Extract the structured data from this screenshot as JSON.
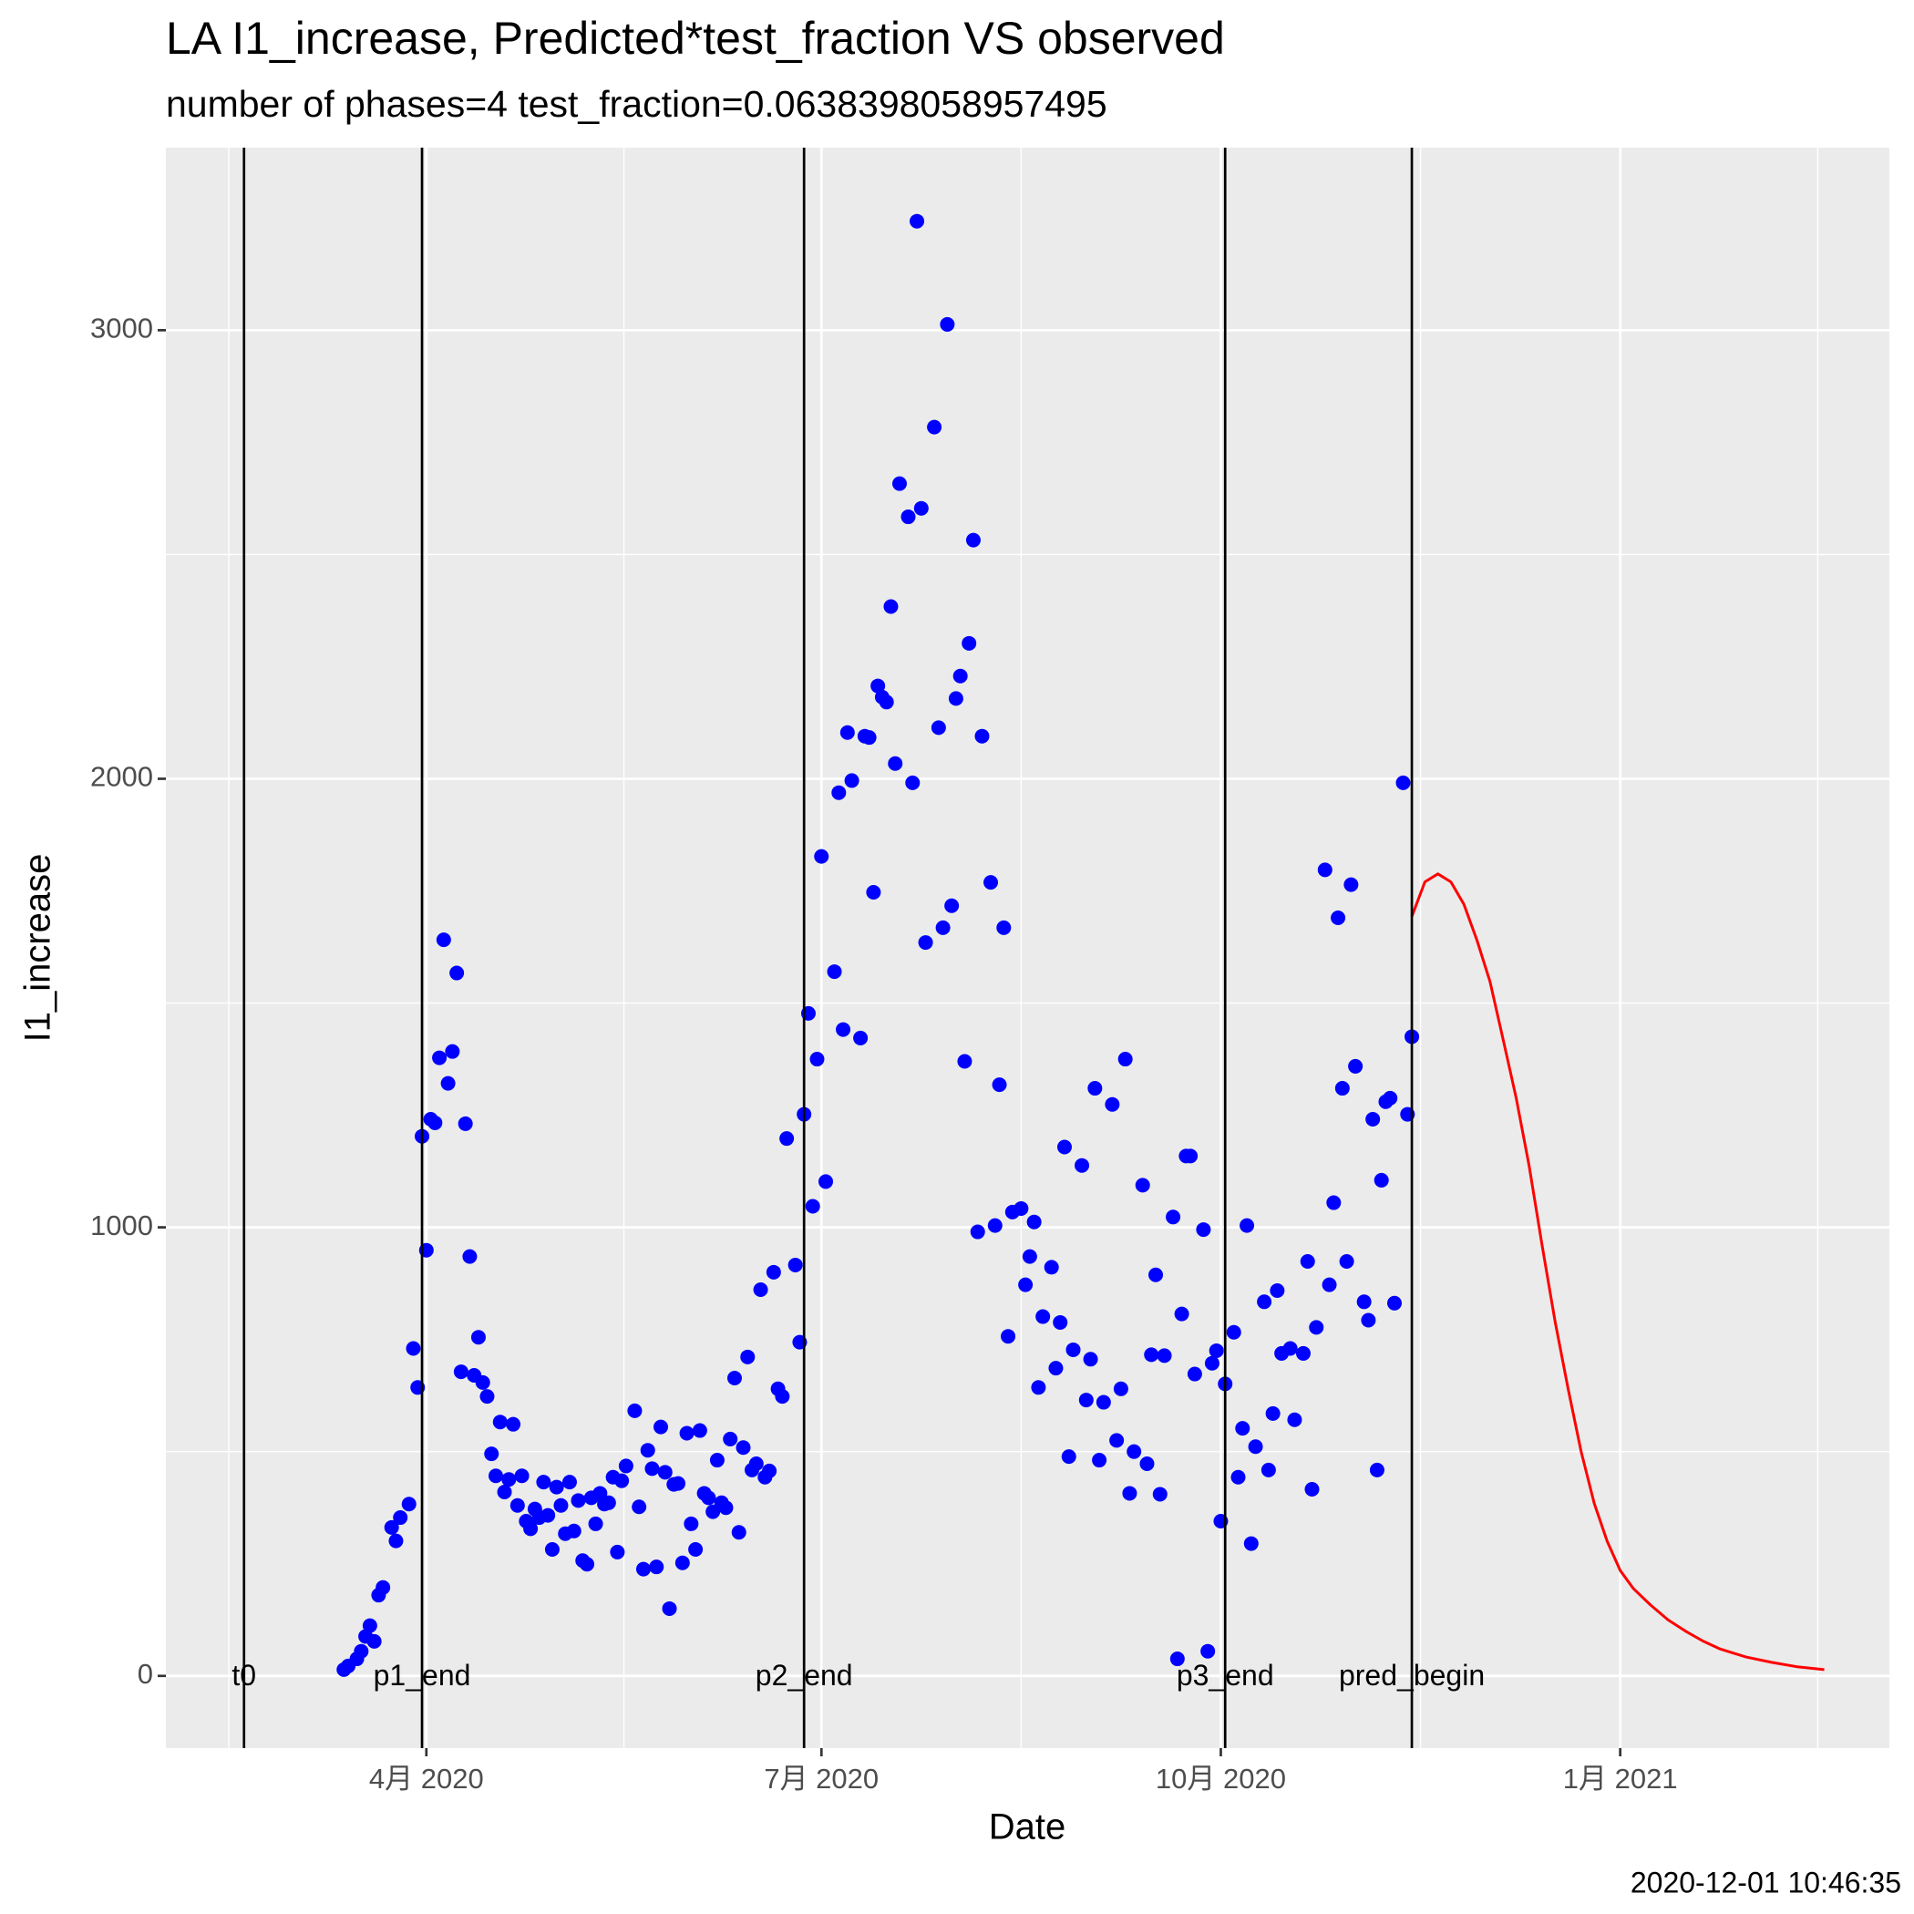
{
  "chart_data": {
    "type": "scatter",
    "title": "LA I1_increase, Predicted*test_fraction VS observed",
    "subtitle": "number of phases=4   test_fraction=0.0638398058957495",
    "x_label": "Date",
    "y_label": "I1_increase",
    "caption": "2020-12-01 10:46:35",
    "xlim": [
      "2020-02-01",
      "2021-03-04"
    ],
    "xticks": [
      {
        "value": "2020-04-01",
        "label": "4月 2020"
      },
      {
        "value": "2020-07-01",
        "label": "7月 2020"
      },
      {
        "value": "2020-10-01",
        "label": "10月 2020"
      },
      {
        "value": "2021-01-01",
        "label": "1月 2021"
      }
    ],
    "ylim": [
      -161,
      3407
    ],
    "yticks": [
      0,
      1000,
      2000,
      3000
    ],
    "grid": true,
    "annotations": [
      {
        "x": "2020-02-19",
        "text": "t0"
      },
      {
        "x": "2020-03-31",
        "text": "p1_end"
      },
      {
        "x": "2020-06-27",
        "text": "p2_end"
      },
      {
        "x": "2020-10-02",
        "text": "p3_end"
      },
      {
        "x": "2020-11-14",
        "text": "pred_begin"
      }
    ],
    "series": [
      {
        "type": "scatter",
        "color": "#0000ff",
        "x": [
          "2020-03-13",
          "2020-03-14",
          "2020-03-16",
          "2020-03-17",
          "2020-03-18",
          "2020-03-19",
          "2020-03-20",
          "2020-03-21",
          "2020-03-22",
          "2020-03-24",
          "2020-03-25",
          "2020-03-26",
          "2020-03-28",
          "2020-03-29",
          "2020-03-30",
          "2020-03-31",
          "2020-04-01",
          "2020-04-02",
          "2020-04-03",
          "2020-04-04",
          "2020-04-05",
          "2020-04-06",
          "2020-04-07",
          "2020-04-08",
          "2020-04-09",
          "2020-04-10",
          "2020-04-11",
          "2020-04-12",
          "2020-04-13",
          "2020-04-14",
          "2020-04-15",
          "2020-04-16",
          "2020-04-17",
          "2020-04-18",
          "2020-04-19",
          "2020-04-20",
          "2020-04-21",
          "2020-04-22",
          "2020-04-23",
          "2020-04-24",
          "2020-04-25",
          "2020-04-26",
          "2020-04-27",
          "2020-04-28",
          "2020-04-29",
          "2020-04-30",
          "2020-05-01",
          "2020-05-02",
          "2020-05-03",
          "2020-05-04",
          "2020-05-05",
          "2020-05-06",
          "2020-05-07",
          "2020-05-08",
          "2020-05-09",
          "2020-05-10",
          "2020-05-11",
          "2020-05-12",
          "2020-05-13",
          "2020-05-14",
          "2020-05-15",
          "2020-05-16",
          "2020-05-17",
          "2020-05-19",
          "2020-05-20",
          "2020-05-21",
          "2020-05-22",
          "2020-05-23",
          "2020-05-24",
          "2020-05-25",
          "2020-05-26",
          "2020-05-27",
          "2020-05-28",
          "2020-05-29",
          "2020-05-30",
          "2020-05-31",
          "2020-06-01",
          "2020-06-02",
          "2020-06-03",
          "2020-06-04",
          "2020-06-05",
          "2020-06-06",
          "2020-06-07",
          "2020-06-08",
          "2020-06-09",
          "2020-06-10",
          "2020-06-11",
          "2020-06-12",
          "2020-06-13",
          "2020-06-14",
          "2020-06-15",
          "2020-06-16",
          "2020-06-17",
          "2020-06-18",
          "2020-06-19",
          "2020-06-20",
          "2020-06-21",
          "2020-06-22",
          "2020-06-23",
          "2020-06-25",
          "2020-06-26",
          "2020-06-27",
          "2020-06-28",
          "2020-06-29",
          "2020-06-30",
          "2020-07-01",
          "2020-07-02",
          "2020-07-04",
          "2020-07-05",
          "2020-07-06",
          "2020-07-07",
          "2020-07-08",
          "2020-07-10",
          "2020-07-11",
          "2020-07-12",
          "2020-07-13",
          "2020-07-14",
          "2020-07-15",
          "2020-07-16",
          "2020-07-17",
          "2020-07-18",
          "2020-07-19",
          "2020-07-21",
          "2020-07-22",
          "2020-07-23",
          "2020-07-24",
          "2020-07-25",
          "2020-07-27",
          "2020-07-28",
          "2020-07-29",
          "2020-07-30",
          "2020-07-31",
          "2020-08-01",
          "2020-08-02",
          "2020-08-03",
          "2020-08-04",
          "2020-08-05",
          "2020-08-06",
          "2020-08-07",
          "2020-08-09",
          "2020-08-10",
          "2020-08-11",
          "2020-08-12",
          "2020-08-13",
          "2020-08-14",
          "2020-08-16",
          "2020-08-17",
          "2020-08-18",
          "2020-08-19",
          "2020-08-20",
          "2020-08-21",
          "2020-08-23",
          "2020-08-24",
          "2020-08-25",
          "2020-08-26",
          "2020-08-27",
          "2020-08-28",
          "2020-08-30",
          "2020-08-31",
          "2020-09-01",
          "2020-09-02",
          "2020-09-03",
          "2020-09-04",
          "2020-09-06",
          "2020-09-07",
          "2020-09-08",
          "2020-09-09",
          "2020-09-10",
          "2020-09-11",
          "2020-09-13",
          "2020-09-14",
          "2020-09-15",
          "2020-09-16",
          "2020-09-17",
          "2020-09-18",
          "2020-09-20",
          "2020-09-21",
          "2020-09-22",
          "2020-09-23",
          "2020-09-24",
          "2020-09-25",
          "2020-09-27",
          "2020-09-28",
          "2020-09-29",
          "2020-09-30",
          "2020-10-01",
          "2020-10-02",
          "2020-10-04",
          "2020-10-05",
          "2020-10-06",
          "2020-10-07",
          "2020-10-08",
          "2020-10-09",
          "2020-10-11",
          "2020-10-12",
          "2020-10-13",
          "2020-10-14",
          "2020-10-15",
          "2020-10-17",
          "2020-10-18",
          "2020-10-20",
          "2020-10-21",
          "2020-10-22",
          "2020-10-23",
          "2020-10-25",
          "2020-10-26",
          "2020-10-27",
          "2020-10-28",
          "2020-10-29",
          "2020-10-30",
          "2020-10-31",
          "2020-11-01",
          "2020-11-03",
          "2020-11-04",
          "2020-11-05",
          "2020-11-06",
          "2020-11-07",
          "2020-11-08",
          "2020-11-09",
          "2020-11-10",
          "2020-11-12",
          "2020-11-13",
          "2020-11-14"
        ],
        "values": [
          14,
          22,
          38,
          55,
          88,
          112,
          77,
          180,
          197,
          331,
          301,
          353,
          383,
          730,
          643,
          1203,
          949,
          1241,
          1233,
          1378,
          1641,
          1321,
          1392,
          1567,
          678,
          1231,
          935,
          670,
          755,
          654,
          623,
          495,
          446,
          566,
          410,
          438,
          561,
          380,
          446,
          345,
          328,
          372,
          353,
          432,
          358,
          282,
          421,
          380,
          317,
          432,
          323,
          391,
          257,
          249,
          397,
          339,
          407,
          383,
          386,
          443,
          276,
          435,
          468,
          591,
          377,
          238,
          503,
          462,
          243,
          555,
          454,
          150,
          427,
          429,
          252,
          541,
          339,
          282,
          547,
          407,
          397,
          366,
          481,
          386,
          375,
          528,
          664,
          320,
          509,
          711,
          459,
          473,
          861,
          443,
          457,
          900,
          640,
          623,
          1198,
          916,
          744,
          1252,
          1477,
          1047,
          1375,
          1827,
          1102,
          1570,
          1969,
          1441,
          2103,
          1996,
          1422,
          2095,
          2092,
          1747,
          2207,
          2182,
          2171,
          2384,
          2034,
          2658,
          2584,
          1991,
          3243,
          2603,
          1635,
          2784,
          2114,
          1668,
          3013,
          1717,
          2179,
          2229,
          1370,
          2302,
          2532,
          990,
          2095,
          1769,
          1004,
          1318,
          1668,
          757,
          1034,
          1042,
          872,
          935,
          1012,
          643,
          801,
          911,
          686,
          788,
          1179,
          489,
          727,
          1138,
          615,
          706,
          1310,
          481,
          610,
          1274,
          525,
          640,
          1375,
          407,
          500,
          1094,
          473,
          716,
          894,
          405,
          714,
          1023,
          38,
          807,
          1159,
          1159,
          673,
          995,
          55,
          697,
          725,
          345,
          651,
          766,
          443,
          552,
          1004,
          295,
          511,
          834,
          459,
          585,
          859,
          719,
          730,
          571,
          719,
          924,
          416,
          777,
          1797,
          872,
          1055,
          1690,
          1310,
          924,
          1764,
          1359,
          834,
          793,
          1241,
          459,
          1105,
          1280,
          1288,
          831,
          1991,
          1252,
          1425
        ]
      },
      {
        "type": "line",
        "color": "#ff0000",
        "x": [
          "2020-11-14",
          "2020-11-17",
          "2020-11-20",
          "2020-11-23",
          "2020-11-26",
          "2020-11-29",
          "2020-12-02",
          "2020-12-05",
          "2020-12-08",
          "2020-12-11",
          "2020-12-14",
          "2020-12-17",
          "2020-12-20",
          "2020-12-23",
          "2020-12-26",
          "2020-12-29",
          "2021-01-01",
          "2021-01-04",
          "2021-01-08",
          "2021-01-12",
          "2021-01-16",
          "2021-01-20",
          "2021-01-24",
          "2021-01-30",
          "2021-02-05",
          "2021-02-11",
          "2021-02-17"
        ],
        "values": [
          1693,
          1770,
          1788,
          1770,
          1720,
          1640,
          1548,
          1420,
          1290,
          1138,
          960,
          790,
          640,
          500,
          385,
          300,
          235,
          195,
          158,
          125,
          100,
          78,
          60,
          42,
          30,
          20,
          14
        ]
      }
    ]
  }
}
